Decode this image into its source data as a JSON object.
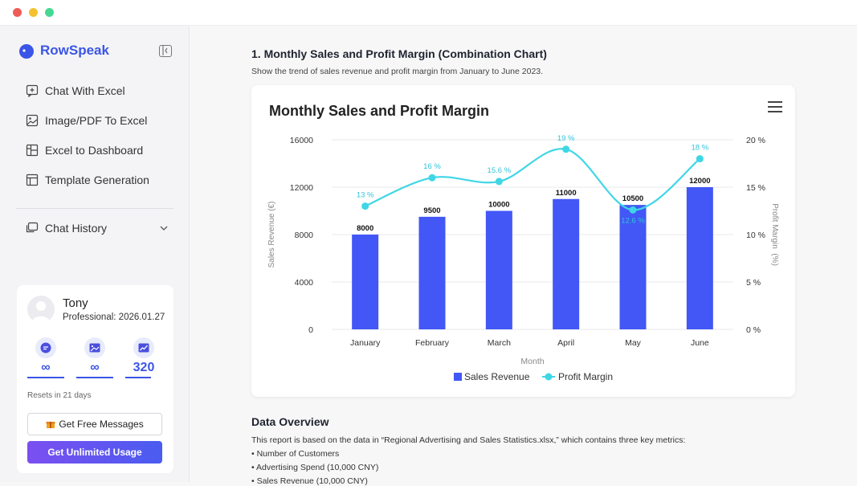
{
  "window": {
    "dots": [
      "#f05a57",
      "#f4c12f",
      "#46d892"
    ]
  },
  "sidebar": {
    "brand": "RowSpeak",
    "nav": [
      {
        "label": "Chat With Excel",
        "icon": "chat-plus-icon"
      },
      {
        "label": "Image/PDF To Excel",
        "icon": "image-icon"
      },
      {
        "label": "Excel to Dashboard",
        "icon": "dashboard-icon"
      },
      {
        "label": "Template Generation",
        "icon": "template-icon"
      }
    ],
    "history": {
      "label": "Chat History",
      "icon": "chat-history-icon"
    },
    "user": {
      "name": "Tony",
      "plan": "Professional: 2026.01.27",
      "stats": [
        {
          "icon": "message-icon",
          "value": "∞"
        },
        {
          "icon": "picture-icon",
          "value": "∞"
        },
        {
          "icon": "chart-icon",
          "value": "320"
        }
      ],
      "reset_note": "Resets in 21 days",
      "free_button": "Get Free Messages",
      "unlimited_button": "Get Unlimited Usage"
    }
  },
  "main": {
    "section_title": "1. Monthly Sales and Profit Margin (Combination Chart)",
    "section_desc": "Show the trend of sales revenue and profit margin from January to June 2023.",
    "overview_title": "Data Overview",
    "overview_lines": [
      "This report is based on the data in “Regional Advertising and Sales Statistics.xlsx,” which contains three key metrics:",
      "• Number of Customers",
      "• Advertising Spend (10,000 CNY)",
      "• Sales Revenue (10,000 CNY)"
    ]
  },
  "chart_data": {
    "type": "bar",
    "title": "Monthly Sales and Profit Margin",
    "categories": [
      "January",
      "February",
      "March",
      "April",
      "May",
      "June"
    ],
    "series": [
      {
        "name": "Sales Revenue",
        "type": "bar",
        "axis": "left",
        "color": "#4257f5",
        "values": [
          8000,
          9500,
          10000,
          11000,
          10500,
          12000
        ],
        "labels": [
          "8000",
          "9500",
          "10000",
          "11000",
          "10500",
          "12000"
        ]
      },
      {
        "name": "Profit Margin",
        "type": "line",
        "axis": "right",
        "color": "#3fd6e6",
        "values": [
          13,
          16,
          15.6,
          19,
          12.6,
          18
        ],
        "labels": [
          "13 %",
          "16 %",
          "15.6 %",
          "19 %",
          "12.6 %",
          "18 %"
        ]
      }
    ],
    "xlabel": "Month",
    "ylabel": "Sales Revenue (€)",
    "y2label": "Profit Margin  (%)",
    "ylim": [
      0,
      16000
    ],
    "y2lim": [
      0,
      20
    ],
    "yticks": [
      "0",
      "4000",
      "8000",
      "12000",
      "16000"
    ],
    "y2ticks": [
      "0 %",
      "5 %",
      "10 %",
      "15 %",
      "20 %"
    ],
    "grid": true,
    "legend": "bottom"
  }
}
